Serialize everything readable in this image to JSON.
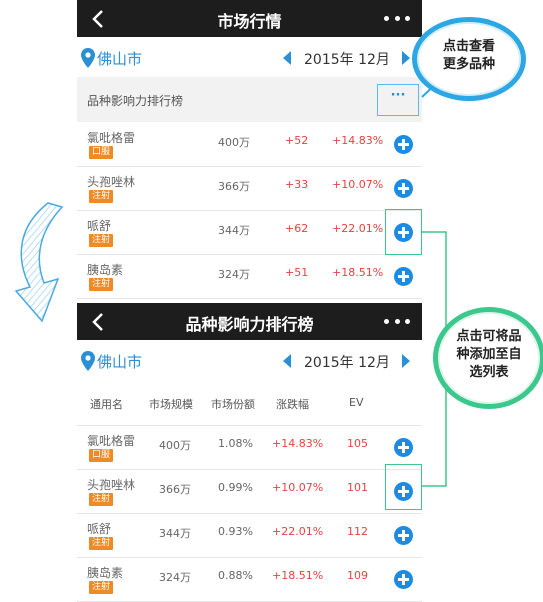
{
  "screen1": {
    "title": "市场行情",
    "city": "佛山市",
    "period": "2015年 12月",
    "section_label": "品种影响力排行榜",
    "more_label": "···",
    "rows": [
      {
        "name": "氯吡格雷",
        "tag": "口服",
        "size": "400万",
        "change": "+52",
        "pct": "+14.83%"
      },
      {
        "name": "头孢唑林",
        "tag": "注射",
        "size": "366万",
        "change": "+33",
        "pct": "+10.07%"
      },
      {
        "name": "哌舒",
        "tag": "注射",
        "size": "344万",
        "change": "+62",
        "pct": "+22.01%"
      },
      {
        "name": "胰岛素",
        "tag": "注射",
        "size": "324万",
        "change": "+51",
        "pct": "+18.51%"
      }
    ]
  },
  "screen2": {
    "title": "品种影响力排行榜",
    "city": "佛山市",
    "period": "2015年 12月",
    "headers": [
      "通用名",
      "市场规模",
      "市场份额",
      "涨跌幅",
      "EV"
    ],
    "rows": [
      {
        "name": "氯吡格雷",
        "tag": "口服",
        "size": "400万",
        "share": "1.08%",
        "pct": "+14.83%",
        "ev": "105"
      },
      {
        "name": "头孢唑林",
        "tag": "注射",
        "size": "366万",
        "share": "0.99%",
        "pct": "+10.07%",
        "ev": "101"
      },
      {
        "name": "哌舒",
        "tag": "注射",
        "size": "344万",
        "share": "0.93%",
        "pct": "+22.01%",
        "ev": "112"
      },
      {
        "name": "胰岛素",
        "tag": "注射",
        "size": "324万",
        "share": "0.88%",
        "pct": "+18.51%",
        "ev": "109"
      }
    ]
  },
  "callouts": {
    "more": [
      "点击查看",
      "更多品种"
    ],
    "add": [
      "点击可将品",
      "种添加至自",
      "选列表"
    ]
  },
  "colors": {
    "accent": "#2b8fd6",
    "tag": "#f08a24",
    "up": "#e84040",
    "callout_blue": "#2ca6e4",
    "callout_green": "#3cc88c"
  }
}
